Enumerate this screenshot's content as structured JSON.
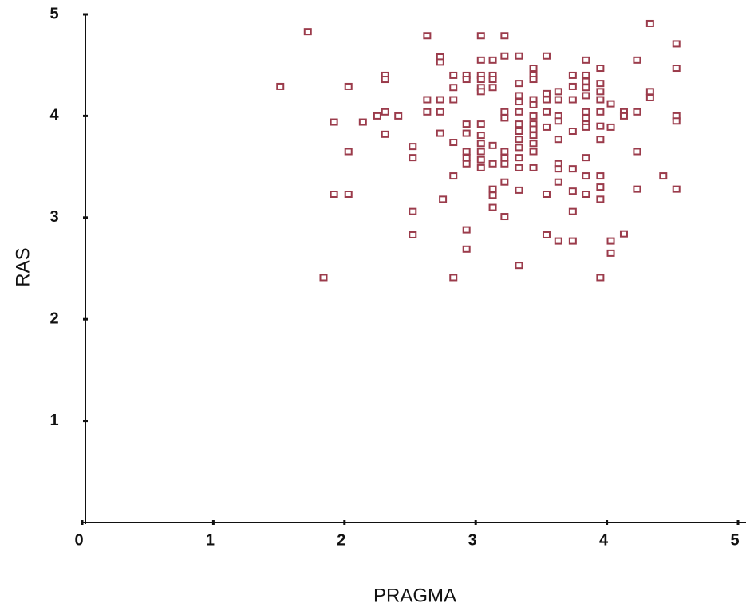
{
  "chart_data": {
    "type": "scatter",
    "x_label": "PRAGMA",
    "y_label": "RAS",
    "color": "#9b3b4b",
    "xlim": [
      0,
      5
    ],
    "ylim": [
      0,
      5
    ],
    "xticks": [
      0,
      1,
      2,
      3,
      4,
      5
    ],
    "yticks": [
      1,
      2,
      3,
      4,
      5
    ],
    "x": [
      1.51,
      1.72,
      2.03,
      1.92,
      2.14,
      2.03,
      1.92,
      2.03,
      1.84,
      2.25,
      2.31,
      2.31,
      2.31,
      2.31,
      2.41,
      2.52,
      2.52,
      2.52,
      2.52,
      2.63,
      2.63,
      2.63,
      2.73,
      2.73,
      2.73,
      2.73,
      2.73,
      2.75,
      2.83,
      2.83,
      2.83,
      2.83,
      2.83,
      2.83,
      2.93,
      2.93,
      2.93,
      2.93,
      2.93,
      2.93,
      2.93,
      2.93,
      2.93,
      3.04,
      3.04,
      3.04,
      3.04,
      3.04,
      3.04,
      3.04,
      3.04,
      3.04,
      3.04,
      3.04,
      3.04,
      3.13,
      3.13,
      3.13,
      3.13,
      3.13,
      3.13,
      3.13,
      3.13,
      3.13,
      3.22,
      3.22,
      3.22,
      3.22,
      3.22,
      3.22,
      3.22,
      3.22,
      3.22,
      3.33,
      3.33,
      3.33,
      3.33,
      3.33,
      3.33,
      3.33,
      3.33,
      3.33,
      3.33,
      3.33,
      3.33,
      3.33,
      3.44,
      3.44,
      3.44,
      3.44,
      3.44,
      3.44,
      3.44,
      3.44,
      3.44,
      3.44,
      3.44,
      3.44,
      3.54,
      3.54,
      3.54,
      3.54,
      3.54,
      3.54,
      3.54,
      3.63,
      3.63,
      3.63,
      3.63,
      3.63,
      3.63,
      3.63,
      3.63,
      3.63,
      3.74,
      3.74,
      3.74,
      3.74,
      3.74,
      3.74,
      3.74,
      3.74,
      3.84,
      3.84,
      3.84,
      3.84,
      3.84,
      3.84,
      3.84,
      3.84,
      3.84,
      3.84,
      3.84,
      3.84,
      3.95,
      3.95,
      3.95,
      3.95,
      3.95,
      3.95,
      3.95,
      3.95,
      3.95,
      3.95,
      3.95,
      4.03,
      4.03,
      4.03,
      4.03,
      4.13,
      4.13,
      4.13,
      4.23,
      4.23,
      4.23,
      4.23,
      4.33,
      4.33,
      4.33,
      4.43,
      4.53,
      4.53,
      4.53,
      4.53,
      4.53
    ],
    "y": [
      4.29,
      4.83,
      4.29,
      3.94,
      3.94,
      3.65,
      3.23,
      3.23,
      2.41,
      4.0,
      4.4,
      4.36,
      4.04,
      3.82,
      4.0,
      3.7,
      3.59,
      3.06,
      2.83,
      4.79,
      4.16,
      4.04,
      4.58,
      4.53,
      4.16,
      4.04,
      3.83,
      3.18,
      4.4,
      4.28,
      4.16,
      3.74,
      3.41,
      2.41,
      4.4,
      4.36,
      3.92,
      3.83,
      3.65,
      3.59,
      3.53,
      2.88,
      2.69,
      4.79,
      4.55,
      4.4,
      4.36,
      4.28,
      4.24,
      3.92,
      3.81,
      3.73,
      3.65,
      3.57,
      3.49,
      4.55,
      4.4,
      4.36,
      4.28,
      3.71,
      3.53,
      3.28,
      3.22,
      3.1,
      4.79,
      4.59,
      4.04,
      3.98,
      3.65,
      3.59,
      3.53,
      3.35,
      3.01,
      4.59,
      4.32,
      4.2,
      4.14,
      4.04,
      3.92,
      3.85,
      3.77,
      3.69,
      3.59,
      3.49,
      3.27,
      2.53,
      4.47,
      4.4,
      4.36,
      4.16,
      4.11,
      4.0,
      3.92,
      3.87,
      3.81,
      3.73,
      3.65,
      3.49,
      4.59,
      4.22,
      4.16,
      4.04,
      3.89,
      3.23,
      2.83,
      4.24,
      4.16,
      4.0,
      3.95,
      3.77,
      3.53,
      3.48,
      3.35,
      2.77,
      4.4,
      4.29,
      4.16,
      3.85,
      3.48,
      3.26,
      3.06,
      2.77,
      4.55,
      4.4,
      4.34,
      4.28,
      4.2,
      4.04,
      3.98,
      3.92,
      3.89,
      3.59,
      3.41,
      3.23,
      4.47,
      4.32,
      4.24,
      4.16,
      4.04,
      3.9,
      3.77,
      3.41,
      3.3,
      3.18,
      2.41,
      4.12,
      3.89,
      2.77,
      2.65,
      4.04,
      4.0,
      2.84,
      4.55,
      4.04,
      3.65,
      3.28,
      4.91,
      4.24,
      4.18,
      3.41,
      4.71,
      4.47,
      4.0,
      3.95,
      3.28
    ]
  }
}
